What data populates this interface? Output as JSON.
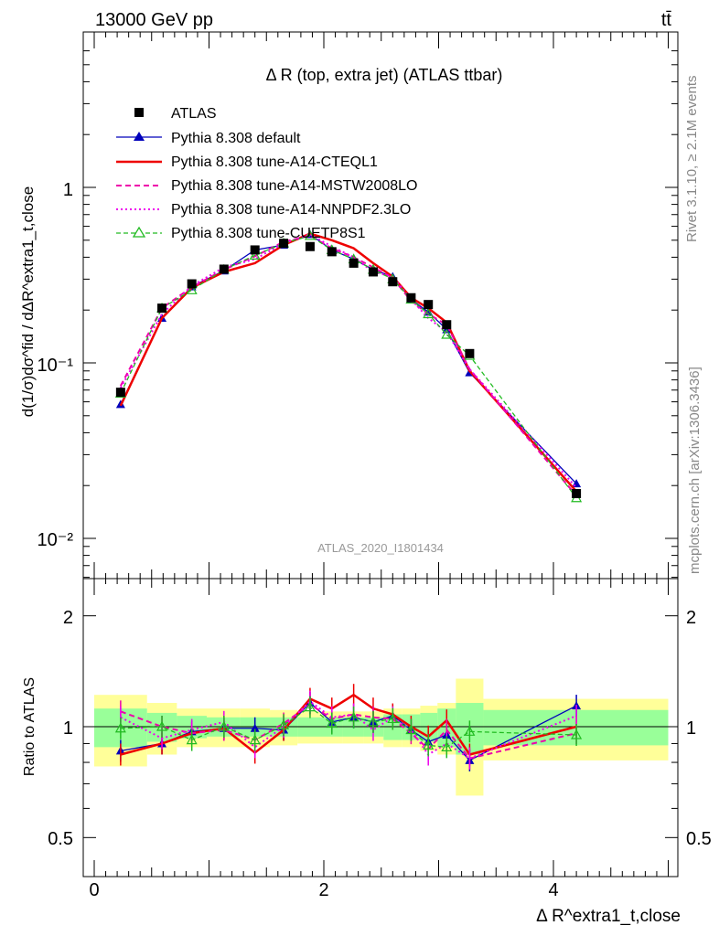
{
  "header": {
    "energy_label": "13000 GeV pp",
    "process_label": "tt̄",
    "plot_title": "Δ R (top, extra jet) (ATLAS ttbar)",
    "rivet_label": "Rivet 3.1.10, ≥ 2.1M events",
    "mcplots_label": "mcplots.cern.ch [arXiv:1306.3436]",
    "analysis_label": "ATLAS_2020_I1801434"
  },
  "axes": {
    "y_top_label": "d(1/σ)dσ^fid / dΔR^extra1_t,close",
    "y_bottom_label": "Ratio to ATLAS",
    "x_label": "Δ R^extra1_t,close",
    "top_ticks": [
      "1",
      "10⁻¹",
      "10⁻²"
    ],
    "bottom_ticks": [
      "2",
      "1",
      "0.5"
    ],
    "x_ticks": [
      "0",
      "2",
      "4"
    ]
  },
  "legend": [
    {
      "label": "ATLAS",
      "color": "#000000",
      "style": "square"
    },
    {
      "label": "Pythia 8.308 default",
      "color": "#0000bb",
      "style": "solid-triangle"
    },
    {
      "label": "Pythia 8.308 tune-A14-CTEQL1",
      "color": "#ee0000",
      "style": "solid-thick"
    },
    {
      "label": "Pythia 8.308 tune-A14-MSTW2008LO",
      "color": "#ee00aa",
      "style": "dashed"
    },
    {
      "label": "Pythia 8.308 tune-A14-NNPDF2.3LO",
      "color": "#ee00ee",
      "style": "dotted"
    },
    {
      "label": "Pythia 8.308 tune-CUETP8S1",
      "color": "#22bb22",
      "style": "dashed-open-triangle"
    }
  ],
  "chart_data": {
    "type": "line",
    "x_scale": "linear",
    "top_y_scale": "log",
    "xlim": [
      -0.15,
      5.1
    ],
    "top_ylim": [
      0.006,
      6.5
    ],
    "bottom_ylim": [
      0.42,
      2.5
    ],
    "bottom_y_scale": "log",
    "x": [
      0.23,
      0.59,
      0.85,
      1.13,
      1.4,
      1.65,
      1.88,
      2.07,
      2.26,
      2.43,
      2.6,
      2.76,
      2.91,
      3.07,
      3.27,
      4.2
    ],
    "x_edges": [
      0.0,
      0.46,
      0.72,
      0.98,
      1.27,
      1.53,
      1.77,
      1.98,
      2.16,
      2.35,
      2.52,
      2.68,
      2.84,
      2.99,
      3.15,
      3.39,
      5.0
    ],
    "series": [
      {
        "name": "ATLAS",
        "values": [
          0.068,
          0.205,
          0.282,
          0.342,
          0.44,
          0.48,
          0.46,
          0.43,
          0.37,
          0.33,
          0.29,
          0.235,
          0.215,
          0.165,
          0.113,
          0.018
        ]
      },
      {
        "name": "Pythia 8.308 default",
        "values": [
          0.058,
          0.18,
          0.272,
          0.335,
          0.44,
          0.47,
          0.54,
          0.44,
          0.39,
          0.34,
          0.31,
          0.23,
          0.195,
          0.155,
          0.088,
          0.0205
        ]
      },
      {
        "name": "Pythia 8.308 tune-A14-CTEQL1",
        "values": [
          0.057,
          0.18,
          0.268,
          0.33,
          0.37,
          0.47,
          0.545,
          0.5,
          0.45,
          0.37,
          0.31,
          0.235,
          0.205,
          0.17,
          0.09,
          0.0185
        ]
      },
      {
        "name": "Pythia 8.308 tune-A14-MSTW2008LO",
        "values": [
          0.074,
          0.205,
          0.27,
          0.34,
          0.405,
          0.49,
          0.53,
          0.45,
          0.4,
          0.35,
          0.305,
          0.225,
          0.19,
          0.165,
          0.092,
          0.0175
        ]
      },
      {
        "name": "Pythia 8.308 tune-A14-NNPDF2.3LO",
        "values": [
          0.072,
          0.19,
          0.275,
          0.35,
          0.39,
          0.48,
          0.54,
          0.46,
          0.4,
          0.33,
          0.31,
          0.23,
          0.18,
          0.15,
          0.092,
          0.0195
        ]
      },
      {
        "name": "Pythia 8.308 tune-CUETP8S1",
        "values": [
          0.067,
          0.205,
          0.26,
          0.34,
          0.41,
          0.48,
          0.53,
          0.44,
          0.39,
          0.34,
          0.3,
          0.23,
          0.19,
          0.145,
          0.11,
          0.017
        ]
      }
    ],
    "ratio": {
      "yellow_band_half_width": [
        0.22,
        0.16,
        0.12,
        0.12,
        0.12,
        0.11,
        0.1,
        0.1,
        0.1,
        0.1,
        0.12,
        0.12,
        0.14,
        0.16,
        0.35,
        0.19
      ],
      "green_band_half_width": [
        0.12,
        0.09,
        0.07,
        0.06,
        0.06,
        0.06,
        0.06,
        0.06,
        0.06,
        0.06,
        0.08,
        0.08,
        0.09,
        0.12,
        0.16,
        0.11
      ],
      "series": [
        {
          "name": "Pythia 8.308 default",
          "values": [
            0.86,
            0.9,
            0.97,
            0.99,
            0.99,
            0.98,
            1.16,
            1.03,
            1.06,
            1.03,
            1.07,
            0.98,
            0.91,
            0.95,
            0.81,
            1.14
          ]
        },
        {
          "name": "Pythia 8.308 tune-A14-CTEQL1",
          "values": [
            0.84,
            0.9,
            0.96,
            0.99,
            0.85,
            0.98,
            1.19,
            1.12,
            1.22,
            1.12,
            1.08,
            1.0,
            0.94,
            1.04,
            0.84,
            1.0
          ]
        },
        {
          "name": "Pythia 8.308 tune-A14-MSTW2008LO",
          "values": [
            1.1,
            1.0,
            0.96,
            0.98,
            0.92,
            1.02,
            1.15,
            1.05,
            1.08,
            1.06,
            1.05,
            0.96,
            0.87,
            0.98,
            0.82,
            0.96
          ]
        },
        {
          "name": "Pythia 8.308 tune-A14-NNPDF2.3LO",
          "values": [
            1.06,
            0.93,
            0.98,
            1.03,
            0.88,
            1.0,
            1.17,
            1.06,
            1.08,
            0.98,
            1.06,
            0.98,
            0.84,
            0.9,
            0.82,
            1.07
          ]
        },
        {
          "name": "Pythia 8.308 tune-CUETP8S1",
          "values": [
            0.99,
            1.0,
            0.92,
            1.0,
            0.92,
            1.01,
            1.13,
            1.02,
            1.06,
            1.03,
            1.05,
            0.98,
            0.89,
            0.88,
            0.97,
            0.95
          ]
        }
      ]
    }
  }
}
